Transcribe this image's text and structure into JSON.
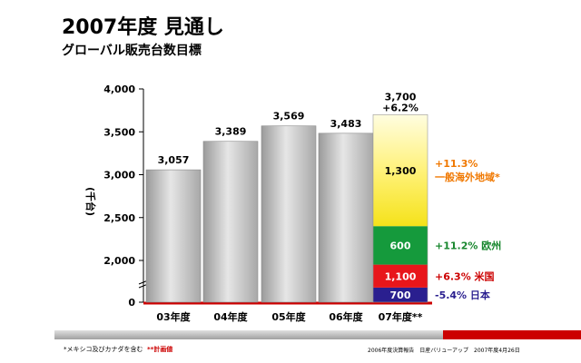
{
  "header": {
    "title": "2007年度 見通し",
    "subtitle": "グローバル販売台数目標"
  },
  "footer": {
    "note": "*メキシコ及びカナダを含む",
    "note_plan": "**計画値",
    "credit": "2006年度決算報告　日産バリューアップ　2007年度4月26日"
  },
  "colors": {
    "bar_gray": "#bdbdbd",
    "accent_red": "#cc0000",
    "segment_japan": "#2a1f8f",
    "segment_us": "#e8161b",
    "segment_europe": "#159a3c",
    "segment_general": "#f5e21a",
    "annotation_orange": "#f07800",
    "annotation_green": "#18872e",
    "annotation_blue": "#2a1f8f"
  },
  "chart_data": {
    "type": "bar",
    "ylabel": "(千台)",
    "ylim": [
      0,
      4000
    ],
    "yticks": [
      "0",
      "2,000",
      "2,500",
      "3,000",
      "3,500",
      "4,000"
    ],
    "ytick_values": [
      0,
      2000,
      2500,
      3000,
      3500,
      4000
    ],
    "categories": [
      "03年度",
      "04年度",
      "05年度",
      "06年度",
      "07年度**"
    ],
    "values": [
      3057,
      3389,
      3569,
      3483,
      3700
    ],
    "value_labels": [
      "3,057",
      "3,389",
      "3,569",
      "3,483",
      "3,700"
    ],
    "growth_label": "+6.2%",
    "stacked_segments": [
      {
        "region": "日本",
        "value": 700,
        "label": "700",
        "change": "-5.4% 日本"
      },
      {
        "region": "米国",
        "value": 1100,
        "label": "1,100",
        "change": "+6.3%  米国"
      },
      {
        "region": "欧州",
        "value": 600,
        "label": "600",
        "change": "+11.2% 欧州"
      },
      {
        "region": "一般海外地域*",
        "value": 1300,
        "label": "1,300",
        "change": "+11.3%",
        "change_line2": "一般海外地域*"
      }
    ],
    "grid": false
  }
}
